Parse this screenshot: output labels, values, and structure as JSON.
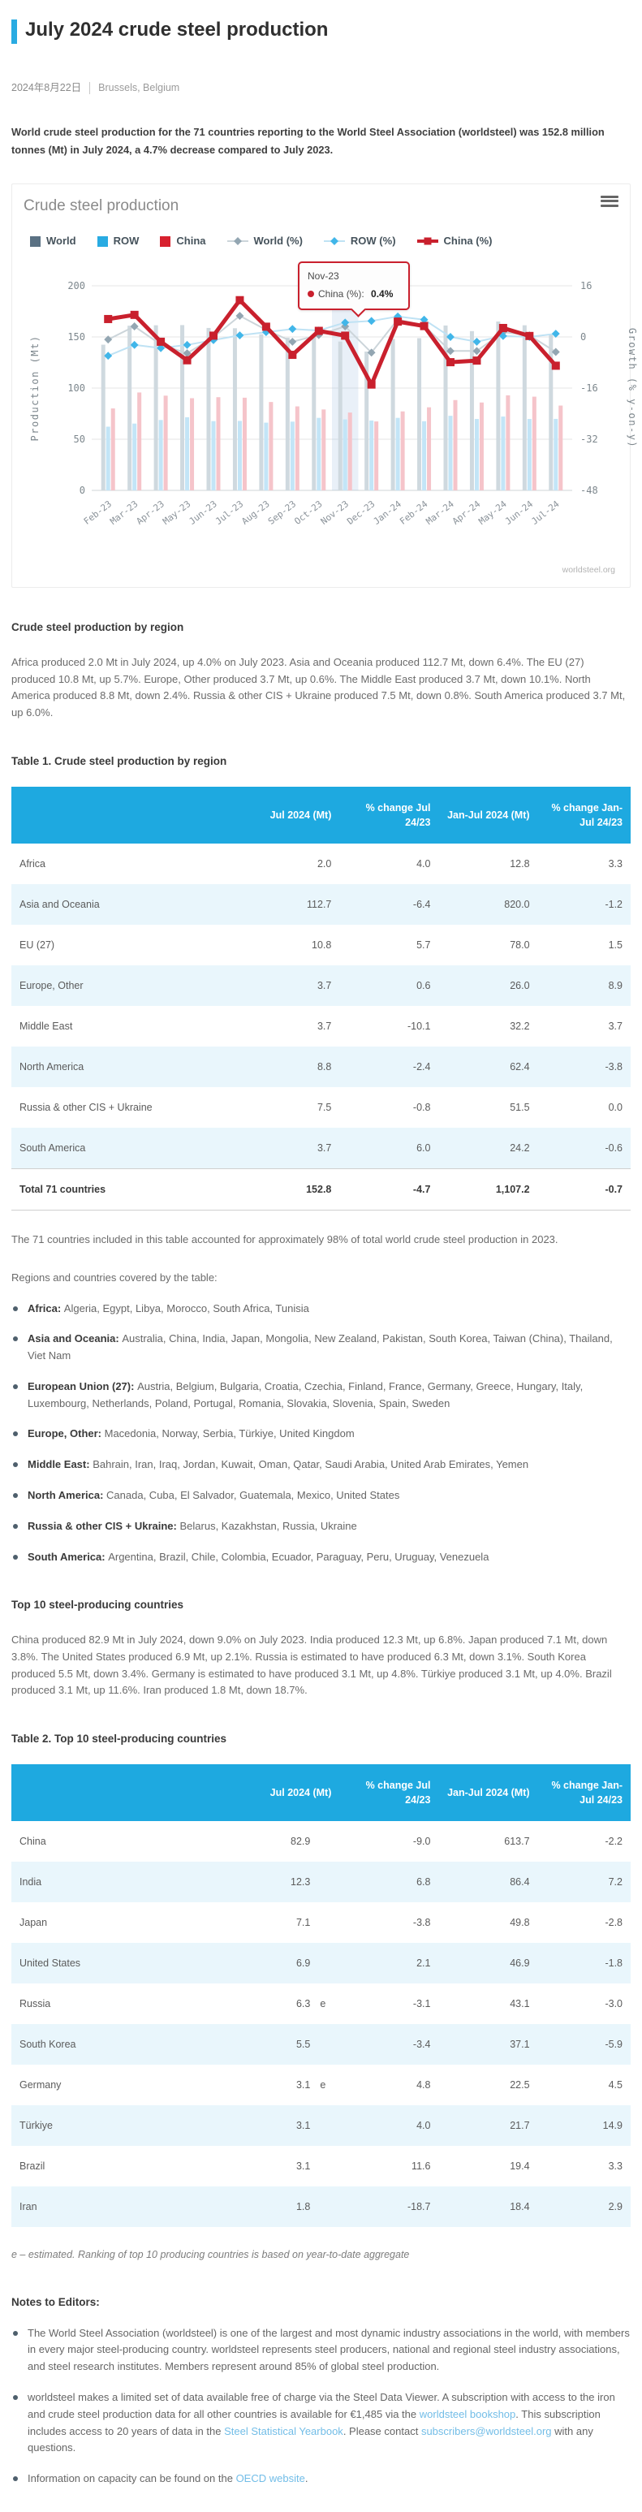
{
  "page": {
    "title": "July 2024 crude steel production",
    "date": "2024年8月22日",
    "location": "Brussels, Belgium",
    "intro": "World crude steel production for the 71 countries reporting to the World Steel Association (worldsteel) was 152.8 million tonnes (Mt) in July 2024, a 4.7% decrease compared to July 2023."
  },
  "colors": {
    "accent_blue": "#29abe2",
    "table_header_bg": "#1ea9e0",
    "row_stripe": "#e9f6fc",
    "link": "#72bde7",
    "world_swatch": "#5a7183",
    "row_swatch": "#29abe2",
    "china_swatch": "#d7212e",
    "world_bar": "#cfd9df",
    "row_bar": "#c3e5f7",
    "china_bar": "#f5c4ca",
    "world_line": "#ccd5da",
    "world_marker": "#93a6b2",
    "row_line": "#bfe2f4",
    "row_marker": "#41b6e9",
    "china_line": "#c9202d"
  },
  "chart": {
    "title": "Crude steel production",
    "menu_icon": "hamburger",
    "attribution": "worldsteel.org",
    "y_left_title": "Production (Mt)",
    "y_right_title": "Growth (% y-on-y)",
    "tooltip": {
      "month": "Nov-23",
      "series": "China (%)",
      "value": "0.4%"
    },
    "highlight_month": "Nov-23"
  },
  "chart_data": {
    "type": "bar+line",
    "x": [
      "Feb-23",
      "Mar-23",
      "Apr-23",
      "May-23",
      "Jun-23",
      "Jul-23",
      "Aug-23",
      "Sep-23",
      "Oct-23",
      "Nov-23",
      "Dec-23",
      "Jan-24",
      "Feb-24",
      "Mar-24",
      "Apr-24",
      "May-24",
      "Jun-24",
      "Jul-24"
    ],
    "bar_series": [
      {
        "name": "World",
        "axis": "left",
        "values": [
          142.4,
          161.0,
          161.4,
          161.6,
          158.8,
          158.5,
          152.6,
          149.3,
          150.0,
          145.5,
          135.7,
          148.1,
          148.8,
          161.2,
          155.7,
          165.1,
          161.4,
          152.8
        ]
      },
      {
        "name": "ROW",
        "axis": "left",
        "values": [
          62.3,
          65.3,
          68.8,
          71.5,
          67.7,
          67.9,
          66.2,
          67.2,
          70.9,
          69.4,
          68.3,
          70.9,
          67.6,
          72.9,
          69.8,
          72.2,
          69.8,
          69.9
        ]
      },
      {
        "name": "China",
        "axis": "left",
        "values": [
          80.1,
          95.7,
          92.6,
          90.1,
          91.1,
          90.6,
          86.4,
          82.1,
          79.1,
          76.1,
          67.4,
          77.2,
          81.2,
          88.3,
          85.9,
          92.9,
          91.6,
          82.9
        ]
      }
    ],
    "line_series": [
      {
        "name": "World (%)",
        "axis": "right",
        "values": [
          -0.8,
          3.3,
          -2.4,
          -5.1,
          -0.1,
          6.6,
          2.2,
          -1.5,
          0.6,
          3.3,
          -4.9,
          5.5,
          3.5,
          -4.4,
          -4.4,
          1.5,
          0.5,
          -4.7
        ]
      },
      {
        "name": "ROW (%)",
        "axis": "right",
        "values": [
          -5.9,
          -2.5,
          -3.5,
          -2.5,
          -1.0,
          0.5,
          1.5,
          2.5,
          2.0,
          4.5,
          5.0,
          6.4,
          5.4,
          0.0,
          -1.5,
          0.3,
          0.0,
          1.0
        ]
      },
      {
        "name": "China (%)",
        "axis": "right",
        "values": [
          5.6,
          6.9,
          -1.5,
          -7.3,
          0.4,
          11.5,
          3.2,
          -5.6,
          1.9,
          0.4,
          -14.9,
          4.8,
          3.4,
          -7.9,
          -7.4,
          2.8,
          0.3,
          -9.0
        ]
      }
    ],
    "y_left": {
      "label": "Production (Mt)",
      "ticks": [
        0,
        50,
        100,
        150,
        200
      ],
      "range": [
        0,
        200
      ]
    },
    "y_right": {
      "label": "Growth (% y-on-y)",
      "ticks": [
        -48,
        -32,
        -16,
        0,
        16
      ],
      "range": [
        -48,
        16
      ]
    },
    "legend_position": "top",
    "grid": true,
    "title": "Crude steel production"
  },
  "region_section": {
    "heading": "Crude steel production by region",
    "paragraph": "Africa produced 2.0 Mt in July 2024, up 4.0% on July 2023. Asia and Oceania produced 112.7 Mt, down 6.4%. The EU (27) produced 10.8 Mt, up 5.7%. Europe, Other produced 3.7 Mt, up 0.6%. The Middle East produced 3.7 Mt, down 10.1%. North America produced 8.8 Mt, down 2.4%. Russia & other CIS + Ukraine produced 7.5 Mt, down 0.8%. South America produced 3.7 Mt, up 6.0%."
  },
  "table1": {
    "title": "Table 1. Crude steel production by region",
    "headers": [
      "",
      "Jul 2024 (Mt)",
      "% change Jul 24/23",
      "Jan-Jul 2024 (Mt)",
      "% change Jan-Jul 24/23"
    ],
    "rows": [
      {
        "region": "Africa",
        "jul": "2.0",
        "chg": "4.0",
        "janjul": "12.8",
        "chg_janjul": "3.3"
      },
      {
        "region": "Asia and Oceania",
        "jul": "112.7",
        "chg": "-6.4",
        "janjul": "820.0",
        "chg_janjul": "-1.2"
      },
      {
        "region": "EU (27)",
        "jul": "10.8",
        "chg": "5.7",
        "janjul": "78.0",
        "chg_janjul": "1.5"
      },
      {
        "region": "Europe, Other",
        "jul": "3.7",
        "chg": "0.6",
        "janjul": "26.0",
        "chg_janjul": "8.9"
      },
      {
        "region": "Middle East",
        "jul": "3.7",
        "chg": "-10.1",
        "janjul": "32.2",
        "chg_janjul": "3.7"
      },
      {
        "region": "North America",
        "jul": "8.8",
        "chg": "-2.4",
        "janjul": "62.4",
        "chg_janjul": "-3.8"
      },
      {
        "region": "Russia & other CIS + Ukraine",
        "jul": "7.5",
        "chg": "-0.8",
        "janjul": "51.5",
        "chg_janjul": "0.0"
      },
      {
        "region": "South America",
        "jul": "3.7",
        "chg": "6.0",
        "janjul": "24.2",
        "chg_janjul": "-0.6"
      }
    ],
    "total_row": {
      "region": "Total 71 countries",
      "jul": "152.8",
      "chg": "-4.7",
      "janjul": "1,107.2",
      "chg_janjul": "-0.7"
    }
  },
  "coverage": {
    "note": "The 71 countries included in this table accounted for approximately 98% of total world crude steel production in 2023.",
    "intro": "Regions and countries covered by the table:",
    "items": [
      {
        "label": "Africa:",
        "countries": "Algeria, Egypt, Libya, Morocco, South Africa, Tunisia"
      },
      {
        "label": "Asia and Oceania:",
        "countries": "Australia, China, India, Japan, Mongolia, New Zealand, Pakistan, South Korea, Taiwan (China), Thailand, Viet Nam"
      },
      {
        "label": "European Union (27):",
        "countries": "Austria, Belgium, Bulgaria, Croatia, Czechia, Finland, France, Germany, Greece, Hungary, Italy, Luxembourg, Netherlands, Poland, Portugal, Romania, Slovakia, Slovenia, Spain, Sweden"
      },
      {
        "label": "Europe, Other:",
        "countries": "Macedonia, Norway, Serbia, Türkiye, United Kingdom"
      },
      {
        "label": "Middle East:",
        "countries": "Bahrain, Iran, Iraq, Jordan, Kuwait, Oman, Qatar, Saudi Arabia, United Arab Emirates, Yemen"
      },
      {
        "label": "North America:",
        "countries": "Canada, Cuba, El Salvador, Guatemala, Mexico, United States"
      },
      {
        "label": "Russia & other CIS + Ukraine:",
        "countries": "Belarus, Kazakhstan, Russia, Ukraine"
      },
      {
        "label": "South America:",
        "countries": "Argentina, Brazil, Chile, Colombia, Ecuador, Paraguay, Peru, Uruguay, Venezuela"
      }
    ]
  },
  "top10_section": {
    "heading": "Top 10 steel-producing countries",
    "paragraph": "China produced 82.9 Mt in July 2024, down 9.0% on July 2023. India produced 12.3 Mt, up 6.8%. Japan produced 7.1 Mt, down 3.8%. The United States produced 6.9 Mt, up 2.1%. Russia is estimated to have produced 6.3 Mt, down 3.1%. South Korea produced 5.5 Mt, down 3.4%. Germany is estimated to have produced 3.1 Mt, up 4.8%. Türkiye produced 3.1 Mt, up 4.0%. Brazil produced 3.1 Mt, up 11.6%. Iran produced 1.8 Mt, down 18.7%."
  },
  "table2": {
    "title": "Table 2. Top 10 steel-producing countries",
    "headers": [
      "",
      "Jul 2024 (Mt)",
      "% change Jul 24/23",
      "Jan-Jul 2024 (Mt)",
      "% change Jan-Jul 24/23"
    ],
    "rows": [
      {
        "country": "China",
        "jul": "82.9",
        "est": "",
        "chg": "-9.0",
        "janjul": "613.7",
        "chg_janjul": "-2.2"
      },
      {
        "country": "India",
        "jul": "12.3",
        "est": "",
        "chg": "6.8",
        "janjul": "86.4",
        "chg_janjul": "7.2"
      },
      {
        "country": "Japan",
        "jul": "7.1",
        "est": "",
        "chg": "-3.8",
        "janjul": "49.8",
        "chg_janjul": "-2.8"
      },
      {
        "country": "United States",
        "jul": "6.9",
        "est": "",
        "chg": "2.1",
        "janjul": "46.9",
        "chg_janjul": "-1.8"
      },
      {
        "country": "Russia",
        "jul": "6.3",
        "est": "e",
        "chg": "-3.1",
        "janjul": "43.1",
        "chg_janjul": "-3.0"
      },
      {
        "country": "South Korea",
        "jul": "5.5",
        "est": "",
        "chg": "-3.4",
        "janjul": "37.1",
        "chg_janjul": "-5.9"
      },
      {
        "country": "Germany",
        "jul": "3.1",
        "est": "e",
        "chg": "4.8",
        "janjul": "22.5",
        "chg_janjul": "4.5"
      },
      {
        "country": "Türkiye",
        "jul": "3.1",
        "est": "",
        "chg": "4.0",
        "janjul": "21.7",
        "chg_janjul": "14.9"
      },
      {
        "country": "Brazil",
        "jul": "3.1",
        "est": "",
        "chg": "11.6",
        "janjul": "19.4",
        "chg_janjul": "3.3"
      },
      {
        "country": "Iran",
        "jul": "1.8",
        "est": "",
        "chg": "-18.7",
        "janjul": "18.4",
        "chg_janjul": "2.9"
      }
    ],
    "footnote": "e – estimated. Ranking of top 10 producing countries is based on year-to-date aggregate"
  },
  "notes": {
    "heading": "Notes to Editors:",
    "items": [
      {
        "segments": [
          {
            "text": "The World Steel Association (worldsteel) is one of the largest and most dynamic industry associations in the world, with members in every major steel-producing country. worldsteel represents steel producers, national and regional steel industry associations, and steel research institutes. Members represent around 85% of global steel production.",
            "link": false
          }
        ]
      },
      {
        "segments": [
          {
            "text": "worldsteel makes a limited set of data available free of charge via the Steel Data Viewer. A subscription with access to the iron and crude steel production data for all other countries is available for €1,485  via the ",
            "link": false
          },
          {
            "text": "worldsteel bookshop",
            "link": true
          },
          {
            "text": ". This subscription includes access to 20 years of data in the ",
            "link": false
          },
          {
            "text": "Steel Statistical Yearbook",
            "link": true
          },
          {
            "text": ". Please contact ",
            "link": false
          },
          {
            "text": "subscribers@worldsteel.org",
            "link": true
          },
          {
            "text": " with any questions.",
            "link": false
          }
        ]
      },
      {
        "segments": [
          {
            "text": "Information on capacity can be found on the ",
            "link": false
          },
          {
            "text": "OECD website",
            "link": true
          },
          {
            "text": ".",
            "link": false
          }
        ]
      }
    ]
  }
}
